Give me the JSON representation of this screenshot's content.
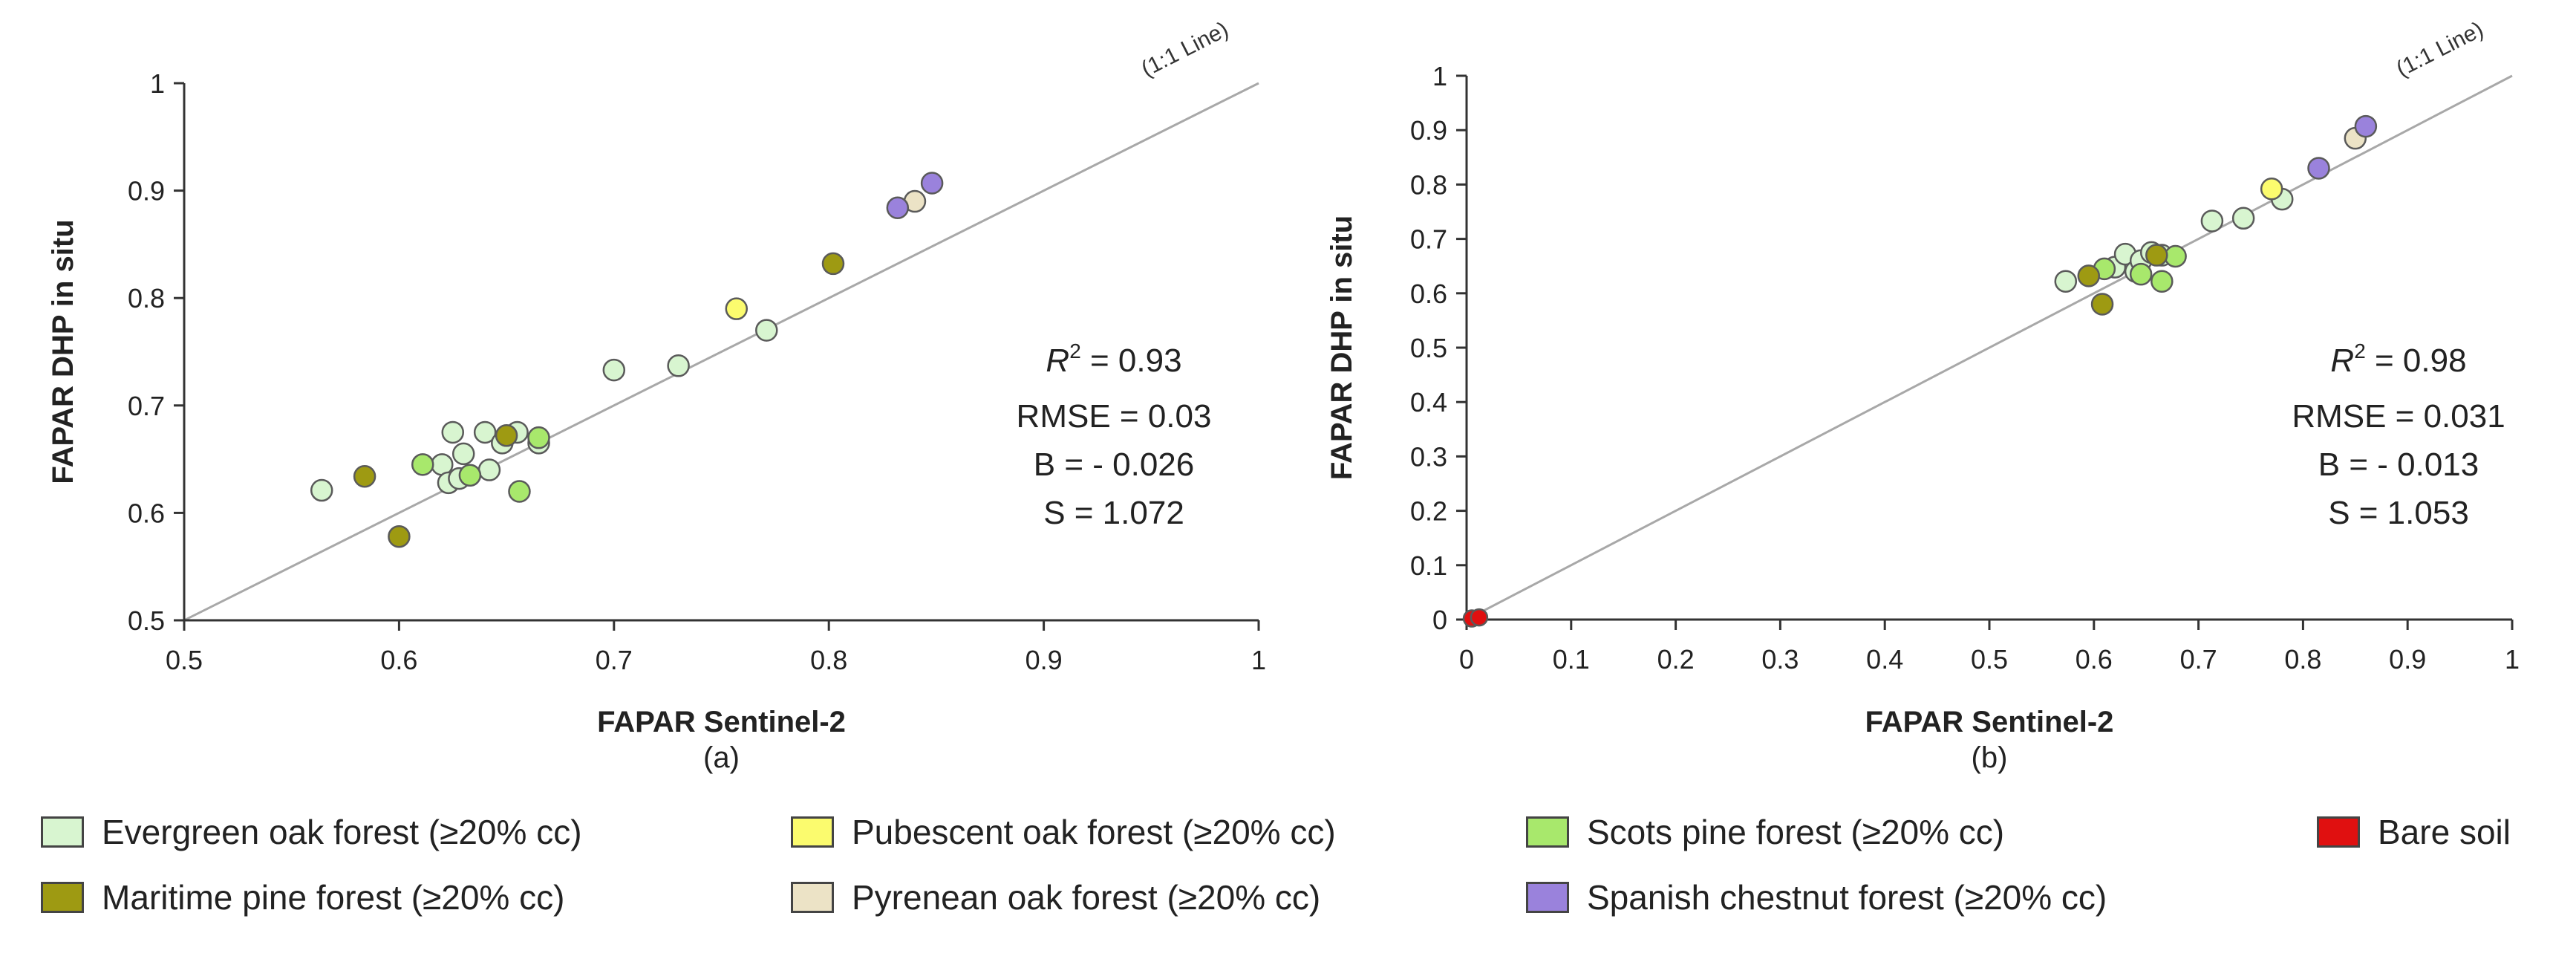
{
  "colors": {
    "evergreen": "#d8f5d0",
    "pubescent": "#fbfb6e",
    "scots": "#a8e86c",
    "bare": "#e01010",
    "maritime": "#9e9a12",
    "pyrenean": "#ece3c6",
    "chestnut": "#9a82dc"
  },
  "legend": [
    {
      "key": "evergreen",
      "label": "Evergreen oak forest (≥20% cc)"
    },
    {
      "key": "pubescent",
      "label": "Pubescent oak forest (≥20% cc)"
    },
    {
      "key": "scots",
      "label": "Scots pine forest (≥20% cc)"
    },
    {
      "key": "bare",
      "label": "Bare soil"
    },
    {
      "key": "maritime",
      "label": "Maritime pine forest (≥20% cc)"
    },
    {
      "key": "pyrenean",
      "label": "Pyrenean oak forest (≥20% cc)"
    },
    {
      "key": "chestnut",
      "label": "Spanish chestnut forest (≥20% cc)"
    }
  ],
  "chart_data": [
    {
      "type": "scatter",
      "sublabel": "(a)",
      "xlabel": "FAPAR Sentinel-2",
      "ylabel": "FAPAR DHP in situ",
      "xlim": [
        0.5,
        1
      ],
      "ylim": [
        0.5,
        1
      ],
      "xticks": [
        "0.5",
        "0.6",
        "0.7",
        "0.8",
        "0.9",
        "1"
      ],
      "yticks": [
        "0.5",
        "0.6",
        "0.7",
        "0.8",
        "0.9",
        "1"
      ],
      "reference_line": "(1:1 Line)",
      "stats": {
        "r2_symbol": "R",
        "r2_sup": "2",
        "r2": " = 0.93",
        "rmse": "RMSE = 0.03",
        "bias": "B = - 0.026",
        "slope": "S = 1.072"
      },
      "series": [
        {
          "class": "evergreen",
          "points": [
            [
              0.564,
              0.621
            ],
            [
              0.62,
              0.645
            ],
            [
              0.625,
              0.675
            ],
            [
              0.623,
              0.628
            ],
            [
              0.628,
              0.632
            ],
            [
              0.63,
              0.655
            ],
            [
              0.64,
              0.675
            ],
            [
              0.642,
              0.64
            ],
            [
              0.648,
              0.665
            ],
            [
              0.655,
              0.675
            ],
            [
              0.665,
              0.665
            ],
            [
              0.7,
              0.733
            ],
            [
              0.73,
              0.737
            ],
            [
              0.771,
              0.77
            ]
          ]
        },
        {
          "class": "scots",
          "points": [
            [
              0.611,
              0.645
            ],
            [
              0.633,
              0.635
            ],
            [
              0.656,
              0.62
            ],
            [
              0.665,
              0.67
            ]
          ]
        },
        {
          "class": "maritime",
          "points": [
            [
              0.584,
              0.634
            ],
            [
              0.6,
              0.578
            ],
            [
              0.65,
              0.672
            ],
            [
              0.802,
              0.832
            ]
          ]
        },
        {
          "class": "pubescent",
          "points": [
            [
              0.757,
              0.79
            ]
          ]
        },
        {
          "class": "pyrenean",
          "points": [
            [
              0.84,
              0.89
            ]
          ]
        },
        {
          "class": "chestnut",
          "points": [
            [
              0.832,
              0.884
            ],
            [
              0.848,
              0.907
            ]
          ]
        }
      ]
    },
    {
      "type": "scatter",
      "sublabel": "(b)",
      "xlabel": "FAPAR Sentinel-2",
      "ylabel": "FAPAR DHP in situ",
      "xlim": [
        0,
        1
      ],
      "ylim": [
        0,
        1
      ],
      "xticks": [
        "0",
        "0.1",
        "0.2",
        "0.3",
        "0.4",
        "0.5",
        "0.6",
        "0.7",
        "0.8",
        "0.9",
        "1"
      ],
      "yticks": [
        "0",
        "0.1",
        "0.2",
        "0.3",
        "0.4",
        "0.5",
        "0.6",
        "0.7",
        "0.8",
        "0.9",
        "1"
      ],
      "reference_line": "(1:1 Line)",
      "stats": {
        "r2_symbol": "R",
        "r2_sup": "2",
        "r2": " = 0.98",
        "rmse": "RMSE = 0.031",
        "bias": "B = - 0.013",
        "slope": "S = 1.053"
      },
      "series": [
        {
          "class": "evergreen",
          "points": [
            [
              0.573,
              0.622
            ],
            [
              0.62,
              0.648
            ],
            [
              0.63,
              0.672
            ],
            [
              0.64,
              0.64
            ],
            [
              0.645,
              0.66
            ],
            [
              0.655,
              0.675
            ],
            [
              0.665,
              0.67
            ],
            [
              0.713,
              0.733
            ],
            [
              0.743,
              0.738
            ],
            [
              0.78,
              0.773
            ]
          ]
        },
        {
          "class": "scots",
          "points": [
            [
              0.61,
              0.645
            ],
            [
              0.645,
              0.635
            ],
            [
              0.665,
              0.622
            ],
            [
              0.678,
              0.668
            ]
          ]
        },
        {
          "class": "maritime",
          "points": [
            [
              0.595,
              0.632
            ],
            [
              0.608,
              0.58
            ],
            [
              0.66,
              0.67
            ]
          ]
        },
        {
          "class": "pubescent",
          "points": [
            [
              0.77,
              0.792
            ]
          ]
        },
        {
          "class": "pyrenean",
          "points": [
            [
              0.85,
              0.885
            ]
          ]
        },
        {
          "class": "chestnut",
          "points": [
            [
              0.815,
              0.83
            ],
            [
              0.86,
              0.907
            ]
          ]
        },
        {
          "class": "bare",
          "points": [
            [
              0.005,
              0.002
            ],
            [
              0.012,
              0.004
            ]
          ]
        }
      ]
    }
  ]
}
